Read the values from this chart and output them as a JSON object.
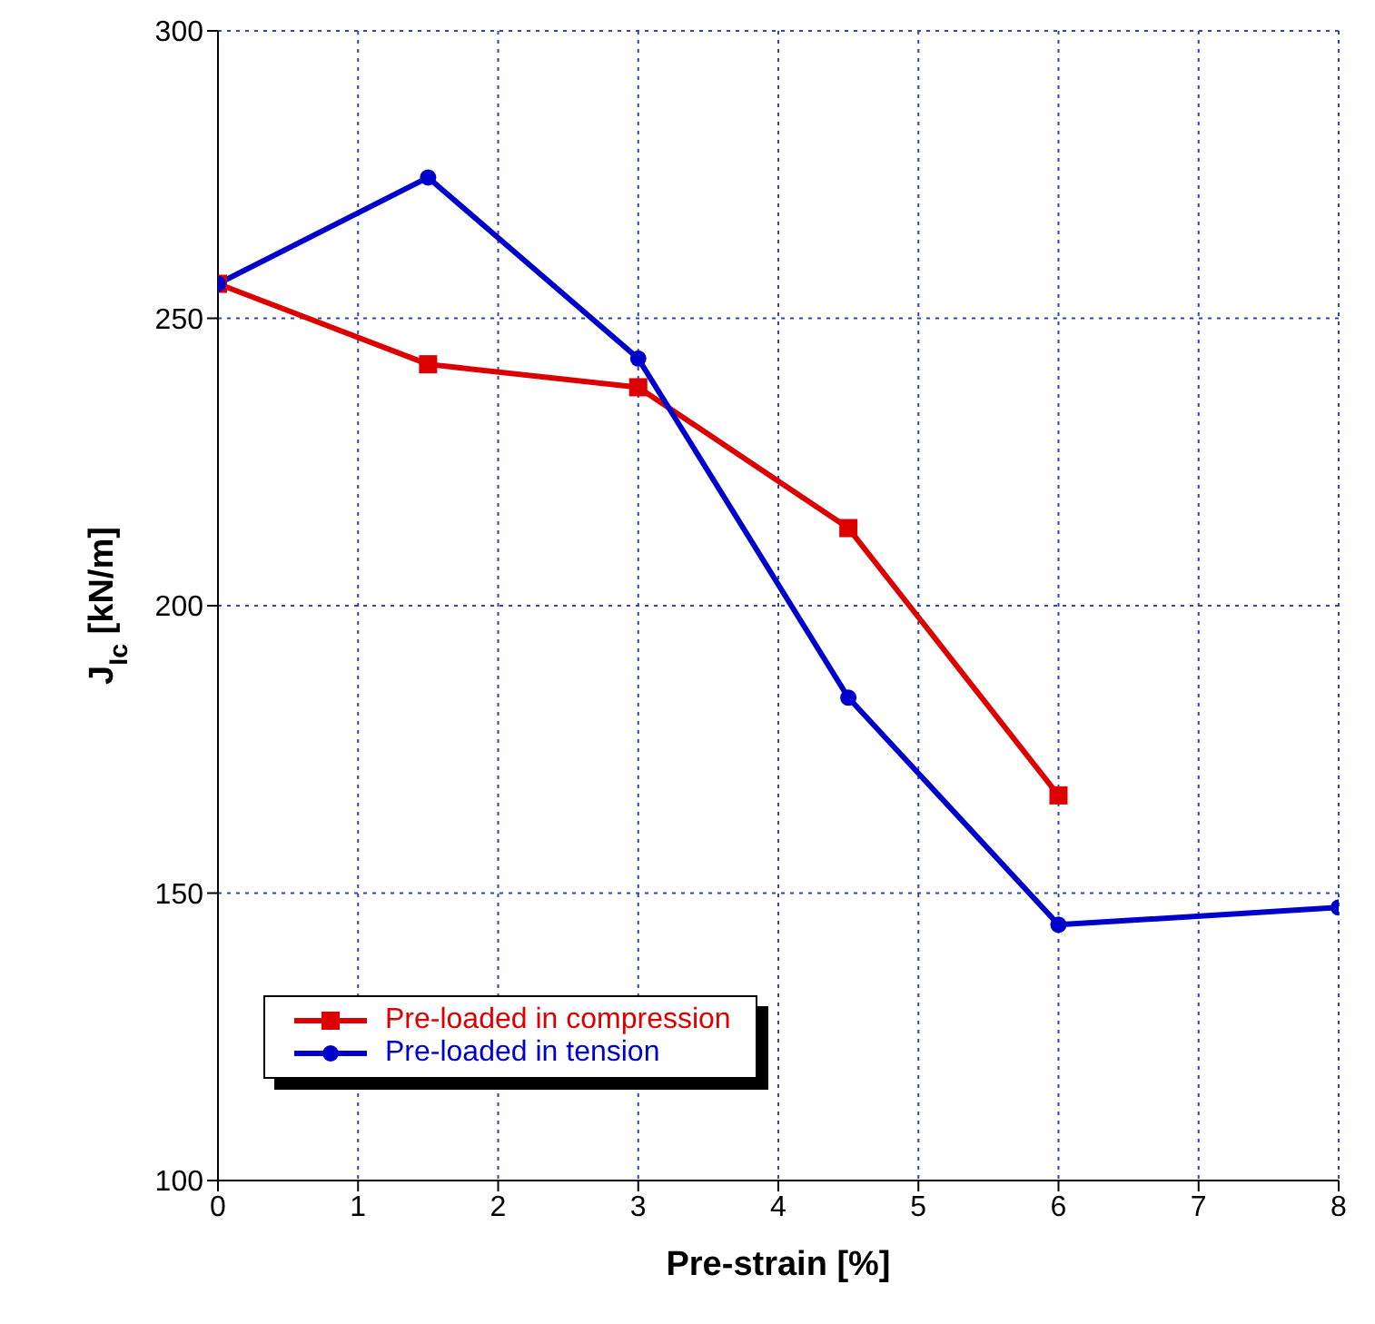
{
  "chart_data": {
    "type": "line",
    "xlabel": "Pre-strain [%]",
    "ylabel": "J$_{Ic}$ [kN/m]",
    "xlim": [
      0,
      8
    ],
    "xticks": [
      0,
      1,
      2,
      3,
      4,
      5,
      6,
      7,
      8
    ],
    "ylim": [
      100,
      300
    ],
    "yticks": [
      100,
      150,
      200,
      250,
      300
    ],
    "grid": true,
    "legend": "bottom left",
    "series": [
      {
        "name": "Pre-loaded in compression",
        "color": "#dd0000",
        "marker": "square",
        "x": [
          0,
          1.5,
          3,
          4.5,
          6
        ],
        "values": [
          256,
          242,
          238,
          213.5,
          167
        ]
      },
      {
        "name": "Pre-loaded in tension",
        "color": "#0000cc",
        "marker": "circle",
        "x": [
          0,
          1.5,
          3,
          4.5,
          6,
          8
        ],
        "values": [
          256,
          274.5,
          243,
          184,
          144.5,
          147.5
        ]
      }
    ]
  }
}
